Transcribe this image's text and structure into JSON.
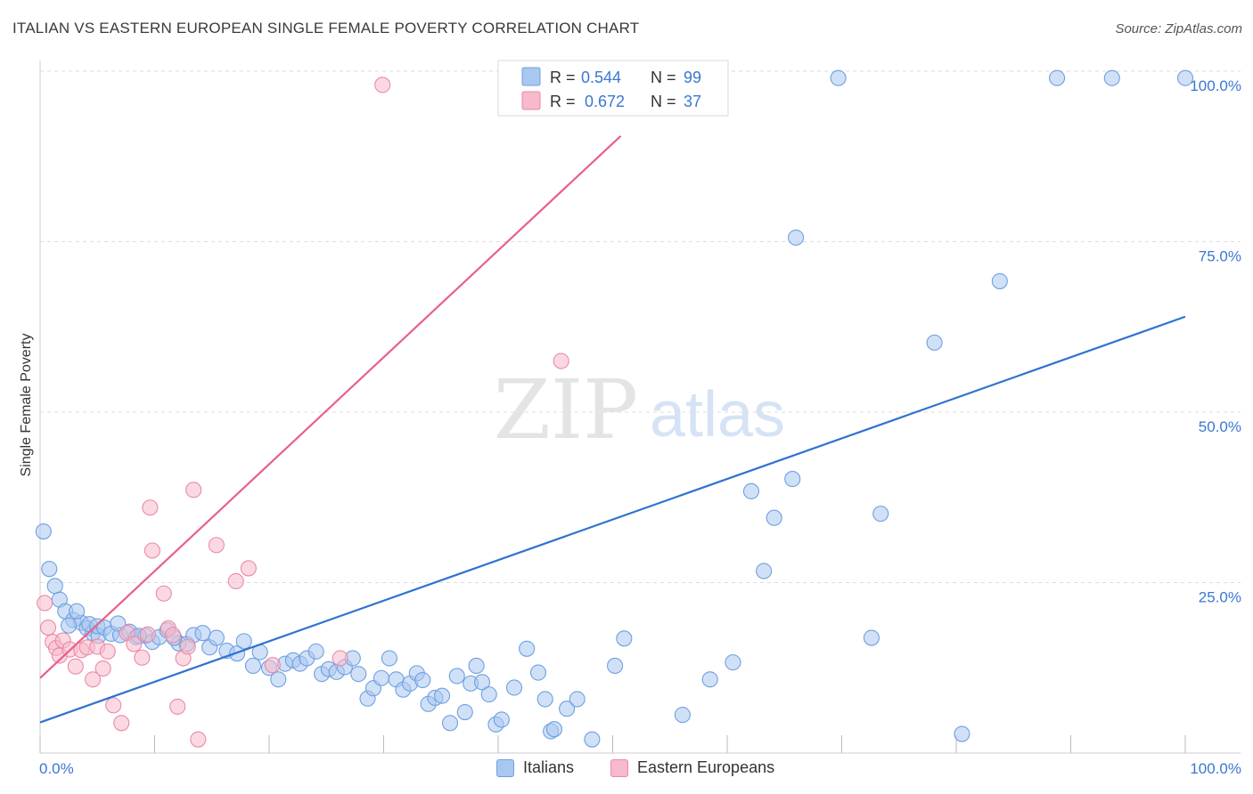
{
  "title": "ITALIAN VS EASTERN EUROPEAN SINGLE FEMALE POVERTY CORRELATION CHART",
  "source": "Source: ZipAtlas.com",
  "watermark": {
    "zip": "ZIP",
    "atlas": "atlas"
  },
  "colors": {
    "blue_fill": "#a9c8f0",
    "blue_stroke": "#6f9fe0",
    "blue_line": "#2f72d0",
    "pink_fill": "#f7b9cb",
    "pink_stroke": "#ea8aa6",
    "pink_line": "#e8608a",
    "value_text": "#3a78d0",
    "grid": "#dddddd"
  },
  "legend": {
    "rows": [
      {
        "series": "Italians",
        "r_label": "R =",
        "r_value": "0.544",
        "n_label": "N =",
        "n_value": "99"
      },
      {
        "series": "Eastern Europeans",
        "r_label": "R =",
        "r_value": "0.672",
        "n_label": "N =",
        "n_value": "37"
      }
    ]
  },
  "bottom_legend": [
    "Italians",
    "Eastern Europeans"
  ],
  "chart_data": {
    "type": "scatter",
    "title": "ITALIAN VS EASTERN EUROPEAN SINGLE FEMALE POVERTY CORRELATION CHART",
    "xlabel": "",
    "ylabel": "Single Female Poverty",
    "xlim": [
      0,
      100
    ],
    "ylim": [
      0,
      100
    ],
    "x_tick_labels": [
      "0.0%",
      "100.0%"
    ],
    "y_tick_labels": [
      "25.0%",
      "50.0%",
      "75.0%",
      "100.0%"
    ],
    "y_ticks": [
      25,
      50,
      75,
      100
    ],
    "series": [
      {
        "name": "Italians",
        "r": 0.544,
        "n": 99,
        "trend": {
          "x": [
            0,
            100
          ],
          "y": [
            4.5,
            64.0
          ]
        },
        "points": [
          [
            0.3,
            32.5
          ],
          [
            0.8,
            27.0
          ],
          [
            1.3,
            24.5
          ],
          [
            1.7,
            22.5
          ],
          [
            2.2,
            20.8
          ],
          [
            2.9,
            19.5
          ],
          [
            3.6,
            19.1
          ],
          [
            4.1,
            18.3
          ],
          [
            4.6,
            17.6
          ],
          [
            5.1,
            17.2
          ],
          [
            3.2,
            20.8
          ],
          [
            4.3,
            18.9
          ],
          [
            5.0,
            18.6
          ],
          [
            5.6,
            18.4
          ],
          [
            6.2,
            17.5
          ],
          [
            7.0,
            17.3
          ],
          [
            7.8,
            17.8
          ],
          [
            8.4,
            17.0
          ],
          [
            9.2,
            17.2
          ],
          [
            9.8,
            16.3
          ],
          [
            10.4,
            17.0
          ],
          [
            11.1,
            18.0
          ],
          [
            12.1,
            16.1
          ],
          [
            12.8,
            16.0
          ],
          [
            13.4,
            17.3
          ],
          [
            14.2,
            17.6
          ],
          [
            14.8,
            15.5
          ],
          [
            15.4,
            16.9
          ],
          [
            16.3,
            15.0
          ],
          [
            17.2,
            14.6
          ],
          [
            17.8,
            16.4
          ],
          [
            18.6,
            12.8
          ],
          [
            19.2,
            14.8
          ],
          [
            20.0,
            12.5
          ],
          [
            20.8,
            10.8
          ],
          [
            21.4,
            13.1
          ],
          [
            22.1,
            13.6
          ],
          [
            22.7,
            13.1
          ],
          [
            23.3,
            13.9
          ],
          [
            24.1,
            14.9
          ],
          [
            24.6,
            11.6
          ],
          [
            25.2,
            12.3
          ],
          [
            25.9,
            11.9
          ],
          [
            26.6,
            12.6
          ],
          [
            27.3,
            13.9
          ],
          [
            27.8,
            11.6
          ],
          [
            28.6,
            8.0
          ],
          [
            29.1,
            9.5
          ],
          [
            29.8,
            11.0
          ],
          [
            30.5,
            13.9
          ],
          [
            31.1,
            10.8
          ],
          [
            31.7,
            9.3
          ],
          [
            32.3,
            10.2
          ],
          [
            32.9,
            11.7
          ],
          [
            33.4,
            10.7
          ],
          [
            33.9,
            7.2
          ],
          [
            34.5,
            8.1
          ],
          [
            35.1,
            8.4
          ],
          [
            35.8,
            4.4
          ],
          [
            36.4,
            11.3
          ],
          [
            37.1,
            6.0
          ],
          [
            37.6,
            10.2
          ],
          [
            38.1,
            12.8
          ],
          [
            38.6,
            10.4
          ],
          [
            39.2,
            8.6
          ],
          [
            39.8,
            4.2
          ],
          [
            40.3,
            4.9
          ],
          [
            41.4,
            9.6
          ],
          [
            42.5,
            15.3
          ],
          [
            43.5,
            11.8
          ],
          [
            44.1,
            7.9
          ],
          [
            44.6,
            3.2
          ],
          [
            44.9,
            3.5
          ],
          [
            46.0,
            6.5
          ],
          [
            46.9,
            7.9
          ],
          [
            48.2,
            2.0
          ],
          [
            50.2,
            12.8
          ],
          [
            51.0,
            16.8
          ],
          [
            56.1,
            5.6
          ],
          [
            58.5,
            10.8
          ],
          [
            60.5,
            13.3
          ],
          [
            62.1,
            38.4
          ],
          [
            63.2,
            26.7
          ],
          [
            64.1,
            34.5
          ],
          [
            65.7,
            40.2
          ],
          [
            66.0,
            75.6
          ],
          [
            73.4,
            35.1
          ],
          [
            78.1,
            60.2
          ],
          [
            80.5,
            2.8
          ],
          [
            83.8,
            69.2
          ],
          [
            88.8,
            99.0
          ],
          [
            93.6,
            99.0
          ],
          [
            100.0,
            99.0
          ],
          [
            72.6,
            16.9
          ],
          [
            69.7,
            99.0
          ],
          [
            8.6,
            17.2
          ],
          [
            6.8,
            19.0
          ],
          [
            11.7,
            16.9
          ],
          [
            2.5,
            18.7
          ]
        ]
      },
      {
        "name": "Eastern Europeans",
        "r": 0.672,
        "n": 37,
        "trend": {
          "x": [
            0,
            50.7
          ],
          "y": [
            11.0,
            90.5
          ]
        },
        "points": [
          [
            0.4,
            22.0
          ],
          [
            0.7,
            18.4
          ],
          [
            1.1,
            16.3
          ],
          [
            1.4,
            15.4
          ],
          [
            1.7,
            14.3
          ],
          [
            2.0,
            16.5
          ],
          [
            2.6,
            15.2
          ],
          [
            3.1,
            12.7
          ],
          [
            3.6,
            15.1
          ],
          [
            4.1,
            15.5
          ],
          [
            4.6,
            10.8
          ],
          [
            5.0,
            15.6
          ],
          [
            5.5,
            12.4
          ],
          [
            5.9,
            14.9
          ],
          [
            6.4,
            7.0
          ],
          [
            7.1,
            4.4
          ],
          [
            7.6,
            17.6
          ],
          [
            8.2,
            16.0
          ],
          [
            8.9,
            14.0
          ],
          [
            9.4,
            17.4
          ],
          [
            9.6,
            36.0
          ],
          [
            9.8,
            29.7
          ],
          [
            10.8,
            23.4
          ],
          [
            11.2,
            18.3
          ],
          [
            11.6,
            17.3
          ],
          [
            12.0,
            6.8
          ],
          [
            12.5,
            13.9
          ],
          [
            12.9,
            15.6
          ],
          [
            13.4,
            38.6
          ],
          [
            13.8,
            2.0
          ],
          [
            15.4,
            30.5
          ],
          [
            17.1,
            25.2
          ],
          [
            18.2,
            27.1
          ],
          [
            20.3,
            12.9
          ],
          [
            26.2,
            13.9
          ],
          [
            45.5,
            57.5
          ],
          [
            29.9,
            98.0
          ]
        ]
      }
    ]
  }
}
